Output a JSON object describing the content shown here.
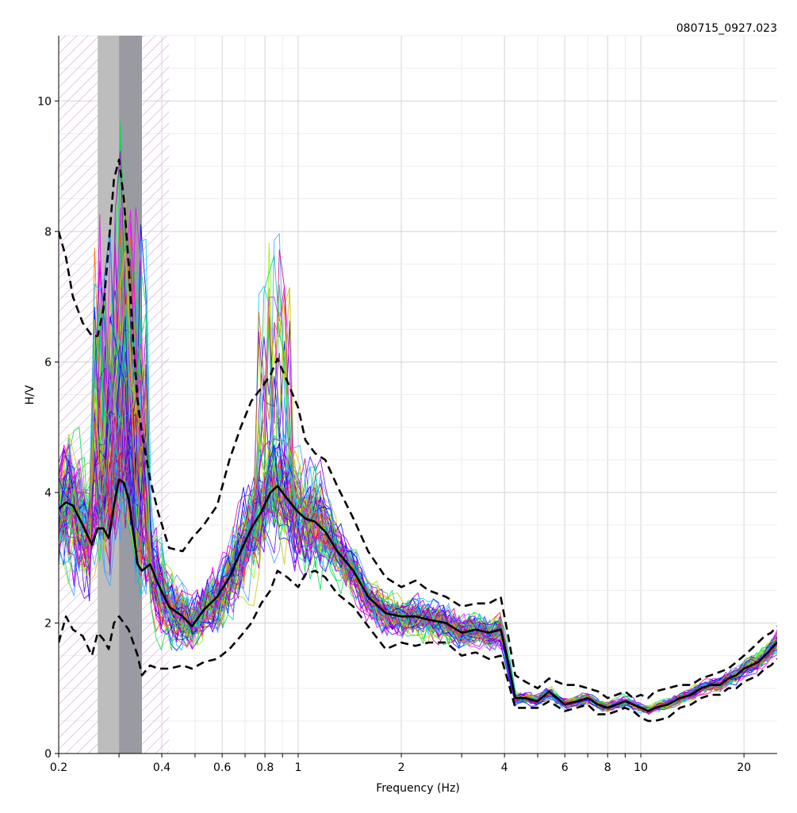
{
  "chart_data": {
    "type": "line",
    "title": "080715_0927.023",
    "xlabel": "Frequency (Hz)",
    "ylabel": "H/V",
    "x_scale": "log",
    "xlim": [
      0.2,
      25
    ],
    "ylim": [
      0,
      11
    ],
    "x_tick_labels": [
      {
        "value": 0.2,
        "label": "0.2"
      },
      {
        "value": 0.4,
        "label": "0.4"
      },
      {
        "value": 0.6,
        "label": "0.6"
      },
      {
        "value": 0.8,
        "label": "0.8"
      },
      {
        "value": 1,
        "label": "1"
      },
      {
        "value": 2,
        "label": "2"
      },
      {
        "value": 4,
        "label": "4"
      },
      {
        "value": 6,
        "label": "6"
      },
      {
        "value": 8,
        "label": "8"
      },
      {
        "value": 10,
        "label": "10"
      },
      {
        "value": 20,
        "label": "20"
      }
    ],
    "y_tick_labels": [
      {
        "value": 0,
        "label": "0"
      },
      {
        "value": 2,
        "label": "2"
      },
      {
        "value": 4,
        "label": "4"
      },
      {
        "value": 6,
        "label": "6"
      },
      {
        "value": 8,
        "label": "8"
      },
      {
        "value": 10,
        "label": "10"
      }
    ],
    "grid": true,
    "peak_band": {
      "f_min": 0.26,
      "f_peak": 0.3,
      "f_max": 0.35
    },
    "hatched_region_fmax": 0.42,
    "window_curve_colors": [
      "#ff00ff",
      "#00c8ff",
      "#00e050",
      "#0000ff",
      "#a000c0",
      "#c8c800",
      "#ff6000",
      "#00c8a0",
      "#6000ff",
      "#e00080",
      "#40a0ff",
      "#80ff00"
    ],
    "window_curve_count": 70,
    "series": [
      {
        "role": "average",
        "style": "solid",
        "x": [
          0.2,
          0.21,
          0.22,
          0.235,
          0.25,
          0.26,
          0.27,
          0.28,
          0.29,
          0.3,
          0.31,
          0.32,
          0.33,
          0.34,
          0.35,
          0.37,
          0.39,
          0.42,
          0.46,
          0.49,
          0.53,
          0.58,
          0.63,
          0.68,
          0.73,
          0.78,
          0.83,
          0.87,
          0.93,
          1.0,
          1.05,
          1.12,
          1.2,
          1.3,
          1.45,
          1.6,
          1.8,
          2.0,
          2.2,
          2.4,
          2.7,
          3.0,
          3.3,
          3.6,
          3.9,
          4.1,
          4.3,
          4.6,
          5.0,
          5.4,
          6.0,
          6.5,
          7.0,
          7.5,
          8.0,
          8.5,
          9.0,
          9.5,
          10.0,
          10.5,
          11.0,
          12.0,
          13.0,
          14.0,
          15.0,
          16.0,
          17.0,
          18.0,
          19.0,
          20.0,
          21.0,
          22.0,
          23.0,
          24.0,
          25.0
        ],
        "y": [
          3.75,
          3.85,
          3.8,
          3.5,
          3.2,
          3.45,
          3.45,
          3.3,
          3.8,
          4.2,
          4.15,
          3.9,
          3.4,
          2.9,
          2.8,
          2.9,
          2.6,
          2.25,
          2.1,
          1.95,
          2.2,
          2.4,
          2.7,
          3.1,
          3.45,
          3.7,
          4.0,
          4.1,
          3.9,
          3.7,
          3.6,
          3.55,
          3.4,
          3.1,
          2.8,
          2.4,
          2.15,
          2.1,
          2.1,
          2.05,
          2.0,
          1.85,
          1.9,
          1.85,
          1.9,
          1.4,
          0.85,
          0.85,
          0.8,
          0.95,
          0.75,
          0.8,
          0.85,
          0.75,
          0.7,
          0.75,
          0.8,
          0.75,
          0.7,
          0.65,
          0.7,
          0.75,
          0.85,
          0.9,
          1.0,
          1.05,
          1.05,
          1.15,
          1.2,
          1.3,
          1.35,
          1.4,
          1.5,
          1.6,
          1.7
        ]
      },
      {
        "role": "upper",
        "style": "dashed",
        "x": [
          0.2,
          0.21,
          0.22,
          0.235,
          0.25,
          0.26,
          0.27,
          0.28,
          0.29,
          0.3,
          0.31,
          0.32,
          0.33,
          0.34,
          0.35,
          0.37,
          0.39,
          0.42,
          0.46,
          0.49,
          0.53,
          0.58,
          0.63,
          0.68,
          0.73,
          0.78,
          0.83,
          0.87,
          0.93,
          1.0,
          1.05,
          1.12,
          1.2,
          1.3,
          1.45,
          1.6,
          1.8,
          2.0,
          2.2,
          2.4,
          2.7,
          3.0,
          3.3,
          3.6,
          3.9,
          4.1,
          4.3,
          4.6,
          5.0,
          5.4,
          6.0,
          6.5,
          7.0,
          7.5,
          8.0,
          8.5,
          9.0,
          9.5,
          10.0,
          10.5,
          11.0,
          12.0,
          13.0,
          14.0,
          15.0,
          16.0,
          17.0,
          18.0,
          19.0,
          20.0,
          21.0,
          22.0,
          23.0,
          24.0,
          25.0
        ],
        "y": [
          8.0,
          7.6,
          7.0,
          6.6,
          6.4,
          6.4,
          6.8,
          7.8,
          8.8,
          9.1,
          8.5,
          7.5,
          6.3,
          5.4,
          4.9,
          4.2,
          3.7,
          3.15,
          3.1,
          3.3,
          3.5,
          3.8,
          4.5,
          5.0,
          5.4,
          5.6,
          5.8,
          6.05,
          5.7,
          5.3,
          4.8,
          4.6,
          4.5,
          4.1,
          3.6,
          3.1,
          2.7,
          2.55,
          2.65,
          2.5,
          2.4,
          2.25,
          2.3,
          2.3,
          2.4,
          1.8,
          1.2,
          1.1,
          1.0,
          1.15,
          1.05,
          1.05,
          1.0,
          0.95,
          0.85,
          0.9,
          0.95,
          0.85,
          0.9,
          0.85,
          0.95,
          1.0,
          1.05,
          1.05,
          1.15,
          1.2,
          1.25,
          1.3,
          1.4,
          1.5,
          1.6,
          1.7,
          1.8,
          1.85,
          1.95
        ]
      },
      {
        "role": "lower",
        "style": "dashed",
        "x": [
          0.2,
          0.21,
          0.22,
          0.235,
          0.25,
          0.26,
          0.27,
          0.28,
          0.29,
          0.3,
          0.31,
          0.32,
          0.33,
          0.34,
          0.35,
          0.37,
          0.39,
          0.42,
          0.46,
          0.49,
          0.53,
          0.58,
          0.63,
          0.68,
          0.73,
          0.78,
          0.83,
          0.87,
          0.93,
          1.0,
          1.05,
          1.12,
          1.2,
          1.3,
          1.45,
          1.6,
          1.8,
          2.0,
          2.2,
          2.4,
          2.7,
          3.0,
          3.3,
          3.6,
          3.9,
          4.1,
          4.3,
          4.6,
          5.0,
          5.4,
          6.0,
          6.5,
          7.0,
          7.5,
          8.0,
          8.5,
          9.0,
          9.5,
          10.0,
          10.5,
          11.0,
          12.0,
          13.0,
          14.0,
          15.0,
          16.0,
          17.0,
          18.0,
          19.0,
          20.0,
          21.0,
          22.0,
          23.0,
          24.0,
          25.0
        ],
        "y": [
          1.7,
          2.1,
          1.9,
          1.8,
          1.5,
          1.85,
          1.75,
          1.6,
          2.0,
          2.1,
          2.0,
          1.9,
          1.7,
          1.5,
          1.2,
          1.35,
          1.3,
          1.3,
          1.35,
          1.3,
          1.4,
          1.45,
          1.6,
          1.8,
          2.0,
          2.3,
          2.5,
          2.8,
          2.7,
          2.55,
          2.75,
          2.8,
          2.7,
          2.45,
          2.25,
          1.95,
          1.6,
          1.7,
          1.65,
          1.7,
          1.7,
          1.5,
          1.55,
          1.45,
          1.5,
          1.1,
          0.7,
          0.7,
          0.7,
          0.8,
          0.65,
          0.7,
          0.75,
          0.6,
          0.6,
          0.65,
          0.7,
          0.65,
          0.55,
          0.5,
          0.5,
          0.55,
          0.7,
          0.75,
          0.85,
          0.9,
          0.9,
          1.0,
          1.0,
          1.1,
          1.15,
          1.2,
          1.3,
          1.35,
          1.45
        ]
      }
    ]
  }
}
